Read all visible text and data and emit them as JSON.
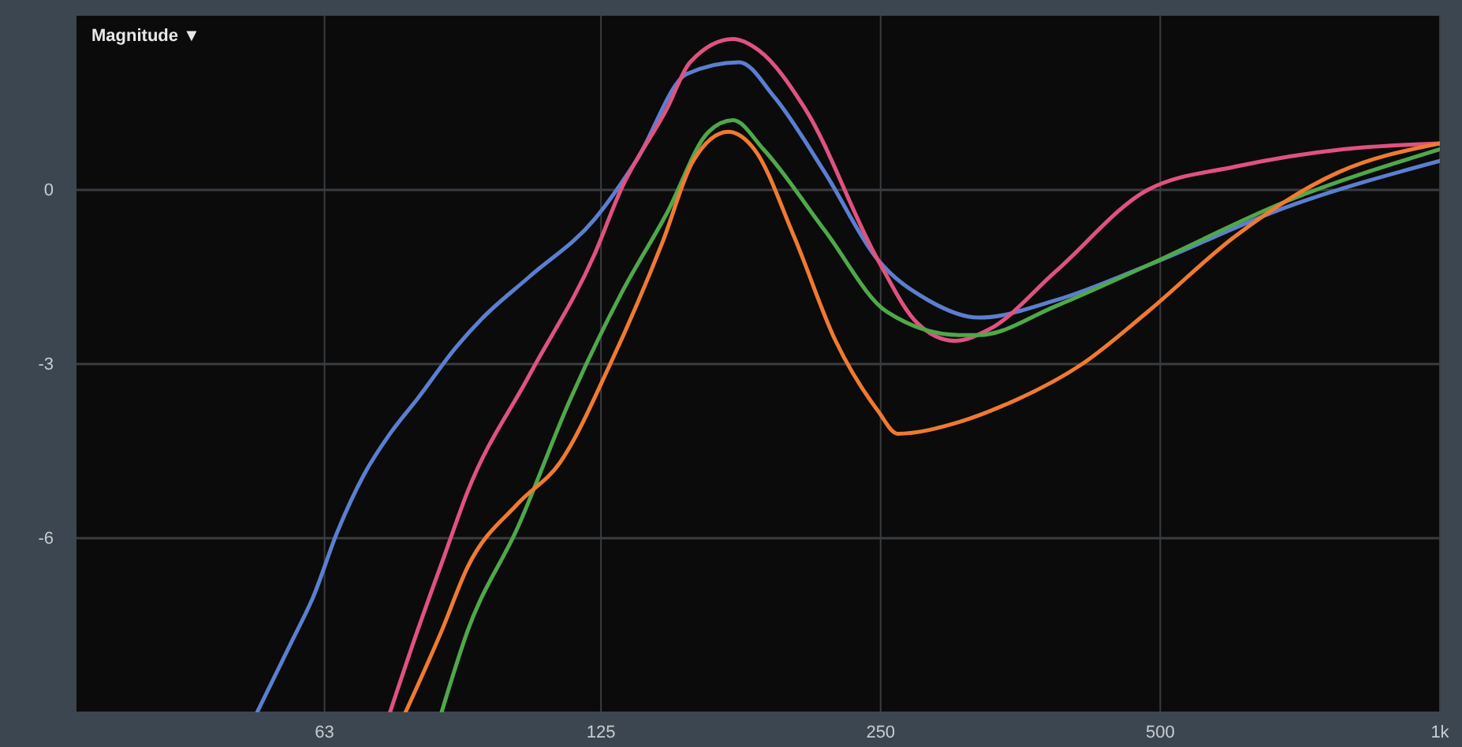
{
  "chart_data": {
    "type": "line",
    "title": "Magnitude ▼",
    "log": "x",
    "grid": true,
    "line_style": "solid",
    "marker": "none",
    "xlim": [
      34,
      1000
    ],
    "ylim": [
      -9,
      3
    ],
    "xticks": [
      63,
      125,
      250,
      500,
      {
        "value": 1000,
        "label": "1k"
      }
    ],
    "yticks": [
      0,
      -3,
      -6
    ],
    "series": [
      {
        "color": "#5b7fd0",
        "x": [
          53.3,
          58,
          61.3,
          65,
          69.5,
          74.1,
          79.3,
          87.4,
          93.3,
          104.6,
          123.1,
          136.4,
          154.7,
          176.1,
          192.1,
          217.7,
          248.2,
          281.3,
          318.9,
          386.1,
          484.6,
          682.6,
          1000
        ],
        "values": [
          -9,
          -7.8,
          -7.0,
          -5.9,
          -4.9,
          -4.2,
          -3.6,
          -2.7,
          -2.2,
          -1.5,
          -0.5,
          0.5,
          2.0,
          2.2,
          1.6,
          0.3,
          -1.2,
          -1.9,
          -2.2,
          -1.9,
          -1.3,
          -0.3,
          0.5
        ]
      },
      {
        "color": "#e0527f",
        "x": [
          74.1,
          79.3,
          84.8,
          89.8,
          104.6,
          123.1,
          131.3,
          147.2,
          155.9,
          173.4,
          185,
          207.3,
          248.2,
          274,
          300.2,
          327.4,
          386.1,
          484.6,
          601.8,
          786,
          1000
        ],
        "values": [
          -9,
          -7.6,
          -6.3,
          -5.2,
          -3.2,
          -1.1,
          0,
          1.4,
          2.2,
          2.6,
          2.4,
          1.4,
          -1.2,
          -2.3,
          -2.6,
          -2.4,
          -1.4,
          0.0,
          0.4,
          0.7,
          0.8
        ]
      },
      {
        "color": "#4fa84a",
        "x": [
          84.2,
          89.8,
          101.8,
          115.9,
          131.3,
          147.2,
          163.2,
          173.4,
          187,
          217.7,
          253.9,
          303.6,
          318.9,
          386.1,
          484.6,
          682.6,
          1000
        ],
        "values": [
          -9,
          -7.6,
          -5.8,
          -3.6,
          -1.8,
          -0.4,
          1.0,
          1.2,
          0.7,
          -0.7,
          -2.1,
          -2.5,
          -2.5,
          -2.0,
          -1.3,
          -0.2,
          0.7
        ]
      },
      {
        "color": "#f07a30",
        "x": [
          77,
          84.2,
          89.8,
          101.8,
          112.9,
          127.9,
          145.6,
          157.1,
          171.4,
          182.8,
          201.7,
          223.6,
          248.2,
          260.7,
          303.6,
          340.6,
          411.9,
          484.6,
          601.8,
          776.9,
          1000
        ],
        "values": [
          -9,
          -7.6,
          -6.5,
          -5.4,
          -4.7,
          -3.0,
          -0.9,
          0.5,
          1.0,
          0.7,
          -0.8,
          -2.6,
          -3.8,
          -4.2,
          -4.0,
          -3.7,
          -3.0,
          -2.1,
          -0.8,
          0.3,
          0.8
        ]
      }
    ]
  }
}
